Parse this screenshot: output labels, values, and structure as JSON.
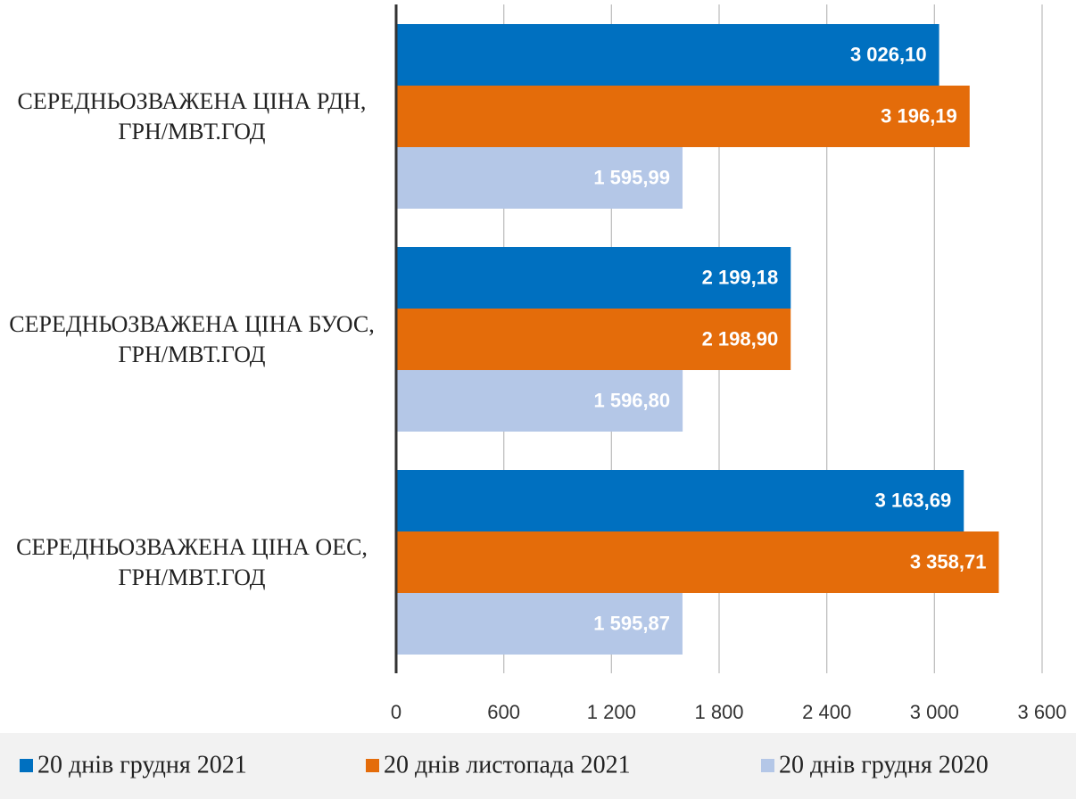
{
  "chart_data": {
    "type": "bar",
    "orientation": "horizontal",
    "categories": [
      "СЕРЕДНЬОЗВАЖЕНА ЦІНА РДН, ГРН/МВТ.ГОД",
      "СЕРЕДНЬОЗВАЖЕНА ЦІНА БУОС, ГРН/МВТ.ГОД",
      "СЕРЕДНЬОЗВАЖЕНА ЦІНА ОЕС, ГРН/МВТ.ГОД"
    ],
    "series": [
      {
        "name": "20 днів грудня 2021",
        "color": "#0070c0",
        "values": [
          3026.1,
          2199.18,
          3163.69
        ],
        "value_labels": [
          "3 026,10",
          "2 199,18",
          "3 163,69"
        ]
      },
      {
        "name": "20 днів листопада 2021",
        "color": "#e46c0a",
        "values": [
          3196.19,
          2198.9,
          3358.71
        ],
        "value_labels": [
          "3 196,19",
          "2 198,90",
          "3 358,71"
        ]
      },
      {
        "name": "20 днів грудня 2020",
        "color": "#b4c7e7",
        "values": [
          1595.99,
          1596.8,
          1595.87
        ],
        "value_labels": [
          "1 595,99",
          "1 596,80",
          "1 595,87"
        ]
      }
    ],
    "xlim": [
      0,
      3600
    ],
    "xticks": [
      0,
      600,
      {
        "value": 1200,
        "label": "1 200"
      },
      {
        "value": 1800,
        "label": "1 800"
      },
      {
        "value": 2400,
        "label": "2 400"
      },
      {
        "value": 3000,
        "label": "3 000"
      },
      {
        "value": 3600,
        "label": "3 600"
      }
    ],
    "grid": true,
    "legend": "bottom"
  }
}
